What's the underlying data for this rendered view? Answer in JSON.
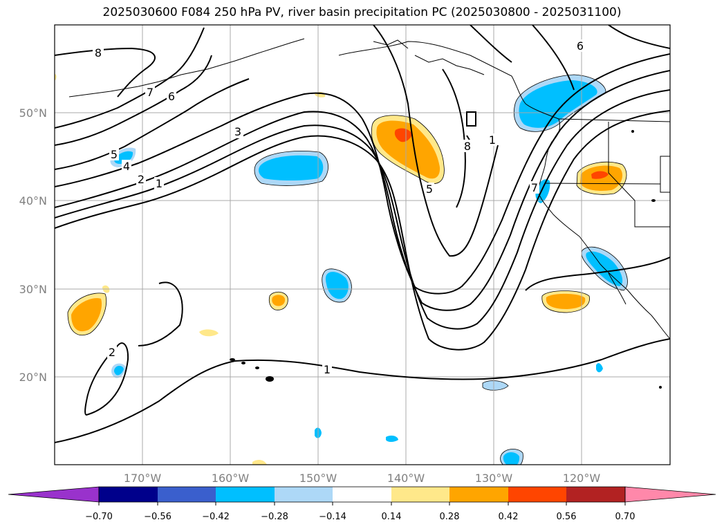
{
  "title": "2025030600 F084 250 hPa PV, river basin precipitation PC (2025030800 - 2025031100)",
  "lat_labels": [
    "50°N",
    "40°N",
    "30°N",
    "20°N"
  ],
  "lon_labels": [
    "170°W",
    "160°W",
    "150°W",
    "140°W",
    "130°W",
    "120°W"
  ],
  "contour_labels": [
    "8",
    "7",
    "6",
    "5",
    "4",
    "3",
    "2",
    "1",
    "5",
    "6",
    "8",
    "7",
    "1",
    "2",
    "1"
  ],
  "colorbar": {
    "ticks": [
      "−0.70",
      "−0.56",
      "−0.42",
      "−0.28",
      "−0.14",
      "0.14",
      "0.28",
      "0.42",
      "0.56",
      "0.70"
    ],
    "colors": [
      "#9932cc",
      "#00008b",
      "#3a5fcd",
      "#00bfff",
      "#add8f7",
      "#ffffff",
      "#ffe88a",
      "#ffa500",
      "#ff4500",
      "#b22222",
      "#ff88aa"
    ]
  },
  "shading_colors": {
    "strong_neg": "#00bfff",
    "weak_neg": "#add8f7",
    "weak_pos": "#ffe88a",
    "mid_pos": "#ffa500",
    "strong_pos": "#ff4500"
  }
}
